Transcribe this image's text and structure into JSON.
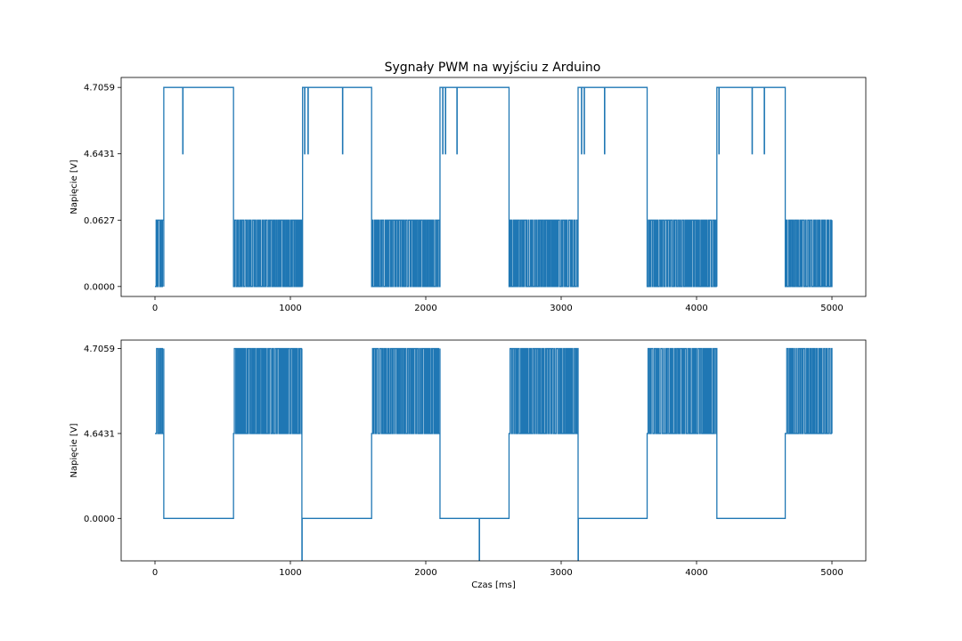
{
  "figure_title": "Sygnały PWM na wyjściu z Arduino",
  "series_color": "#1f77b4",
  "chart_data": [
    {
      "type": "line",
      "title": "Sygnały PWM na wyjściu z Arduino",
      "xlabel": "",
      "ylabel": "Napięcie [V]",
      "xlim": [
        -250,
        5250
      ],
      "xticks": [
        0,
        1000,
        2000,
        3000,
        4000,
        5000
      ],
      "yticks": [
        {
          "label": "0.0000",
          "level": 0
        },
        {
          "label": "0.0627",
          "level": 1
        },
        {
          "label": "4.6431",
          "level": 2
        },
        {
          "label": "4.7059",
          "level": 3
        }
      ],
      "ylim_levels": [
        -0.15,
        3.15
      ],
      "grid": false,
      "segments": [
        {
          "x0": 0,
          "x1": 65,
          "level": "pwm_low"
        },
        {
          "x0": 65,
          "x1": 580,
          "level": 3,
          "spikes_to": 2,
          "spikes": [
            205
          ]
        },
        {
          "x0": 580,
          "x1": 1090,
          "level": "pwm_low"
        },
        {
          "x0": 1090,
          "x1": 1600,
          "level": 3,
          "spikes_to": 2,
          "spikes": [
            1105,
            1130,
            1385
          ]
        },
        {
          "x0": 1600,
          "x1": 2105,
          "level": "pwm_low"
        },
        {
          "x0": 2105,
          "x1": 2615,
          "level": 3,
          "spikes_to": 2,
          "spikes": [
            2125,
            2145,
            2230
          ]
        },
        {
          "x0": 2615,
          "x1": 3125,
          "level": "pwm_low"
        },
        {
          "x0": 3125,
          "x1": 3635,
          "level": 3,
          "spikes_to": 2,
          "spikes": [
            3150,
            3170,
            3320
          ]
        },
        {
          "x0": 3635,
          "x1": 4150,
          "level": "pwm_low"
        },
        {
          "x0": 4150,
          "x1": 4655,
          "level": 3,
          "spikes_to": 2,
          "spikes": [
            4165,
            4410,
            4500
          ]
        },
        {
          "x0": 4655,
          "x1": 5000,
          "level": "pwm_low"
        }
      ],
      "pwm_low": {
        "low": 0,
        "high": 1
      }
    },
    {
      "type": "line",
      "title": "",
      "xlabel": "Czas [ms]",
      "ylabel": "Napięcie [V]",
      "xlim": [
        -250,
        5250
      ],
      "xticks": [
        0,
        1000,
        2000,
        3000,
        4000,
        5000
      ],
      "yticks": [
        {
          "label": "0.0000",
          "level": 0
        },
        {
          "label": "4.6431",
          "level": 1
        },
        {
          "label": "4.7059",
          "level": 2
        }
      ],
      "ylim_levels": [
        -0.5,
        2.1
      ],
      "grid": false,
      "segments": [
        {
          "x0": 0,
          "x1": 65,
          "level": "pwm_high"
        },
        {
          "x0": 65,
          "x1": 580,
          "level": 0
        },
        {
          "x0": 580,
          "x1": 1085,
          "level": "pwm_high"
        },
        {
          "x0": 1085,
          "x1": 1600,
          "level": 0,
          "dips": [
            1085
          ]
        },
        {
          "x0": 1600,
          "x1": 2105,
          "level": "pwm_high"
        },
        {
          "x0": 2105,
          "x1": 2615,
          "level": 0,
          "dips": [
            2395
          ]
        },
        {
          "x0": 2615,
          "x1": 3125,
          "level": "pwm_high"
        },
        {
          "x0": 3125,
          "x1": 3635,
          "level": 0,
          "dips": [
            3125
          ]
        },
        {
          "x0": 3635,
          "x1": 4150,
          "level": "pwm_high"
        },
        {
          "x0": 4150,
          "x1": 4655,
          "level": 0
        },
        {
          "x0": 4655,
          "x1": 5000,
          "level": "pwm_high"
        }
      ],
      "pwm_high": {
        "low": 1,
        "high": 2
      }
    }
  ]
}
